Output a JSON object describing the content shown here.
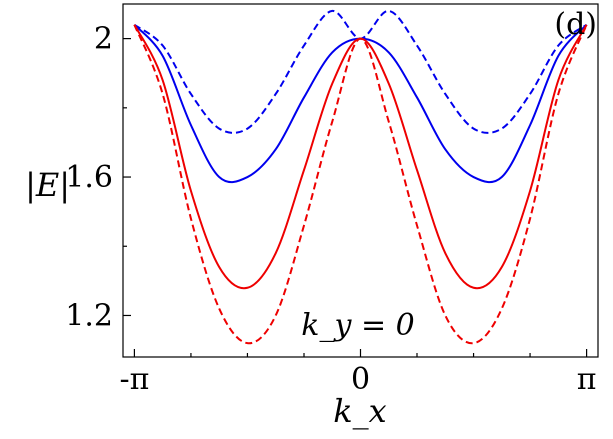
{
  "chart_data": {
    "type": "line",
    "title": "",
    "panel_label": "(d)",
    "xlabel": "k_x",
    "ylabel": "|E|",
    "annotation": "k_y = 0",
    "xlim": [
      -3.3,
      3.3
    ],
    "ylim": [
      1.08,
      2.1
    ],
    "grid": false,
    "legend": "none",
    "x_ticks": [
      {
        "value": -3.14159,
        "label": "-π"
      },
      {
        "value": 0,
        "label": "0"
      },
      {
        "value": 3.14159,
        "label": "π"
      }
    ],
    "x_minor_ticks": [
      -2.356,
      -1.571,
      -0.785,
      0.785,
      1.571,
      2.356
    ],
    "y_ticks": [
      {
        "value": 1.2,
        "label": "1.2"
      },
      {
        "value": 1.6,
        "label": "1.6"
      },
      {
        "value": 2.0,
        "label": "2"
      }
    ],
    "y_minor_ticks": [
      1.4,
      1.8
    ],
    "series": [
      {
        "color": "#0000ee",
        "dash": "dashed",
        "x": [
          -3.1416,
          -2.7489,
          -2.3562,
          -1.9635,
          -1.5708,
          -1.1781,
          -0.7854,
          -0.3927,
          0,
          0.3927,
          0.7854,
          1.1781,
          1.5708,
          1.9635,
          2.3562,
          2.7489,
          3.1416
        ],
        "y": [
          2.04,
          1.98,
          1.84,
          1.74,
          1.74,
          1.84,
          1.98,
          2.08,
          2.0,
          2.08,
          1.98,
          1.84,
          1.74,
          1.74,
          1.84,
          1.98,
          2.04
        ]
      },
      {
        "color": "#0000ee",
        "dash": "solid",
        "x": [
          -3.1416,
          -2.7489,
          -2.3562,
          -1.9635,
          -1.5708,
          -1.1781,
          -0.7854,
          -0.3927,
          0,
          0.3927,
          0.7854,
          1.1781,
          1.5708,
          1.9635,
          2.3562,
          2.7489,
          3.1416
        ],
        "y": [
          2.04,
          1.95,
          1.75,
          1.6,
          1.6,
          1.68,
          1.83,
          1.96,
          2.0,
          1.96,
          1.83,
          1.68,
          1.6,
          1.6,
          1.75,
          1.95,
          2.04
        ]
      },
      {
        "color": "#ee0000",
        "dash": "solid",
        "x": [
          -3.1416,
          -2.7489,
          -2.3562,
          -1.9635,
          -1.5708,
          -1.1781,
          -0.7854,
          -0.3927,
          0,
          0.3927,
          0.7854,
          1.1781,
          1.5708,
          1.9635,
          2.3562,
          2.7489,
          3.1416
        ],
        "y": [
          2.04,
          1.88,
          1.56,
          1.34,
          1.28,
          1.38,
          1.62,
          1.87,
          2.0,
          1.87,
          1.62,
          1.38,
          1.28,
          1.34,
          1.56,
          1.88,
          2.04
        ]
      },
      {
        "color": "#ee0000",
        "dash": "dashed",
        "x": [
          -3.1416,
          -2.7489,
          -2.3562,
          -1.9635,
          -1.5708,
          -1.1781,
          -0.7854,
          -0.3927,
          0,
          0.3927,
          0.7854,
          1.1781,
          1.5708,
          1.9635,
          2.3562,
          2.7489,
          3.1416
        ],
        "y": [
          2.04,
          1.84,
          1.48,
          1.22,
          1.12,
          1.2,
          1.46,
          1.76,
          2.0,
          1.76,
          1.46,
          1.2,
          1.12,
          1.22,
          1.48,
          1.84,
          2.04
        ]
      }
    ]
  }
}
